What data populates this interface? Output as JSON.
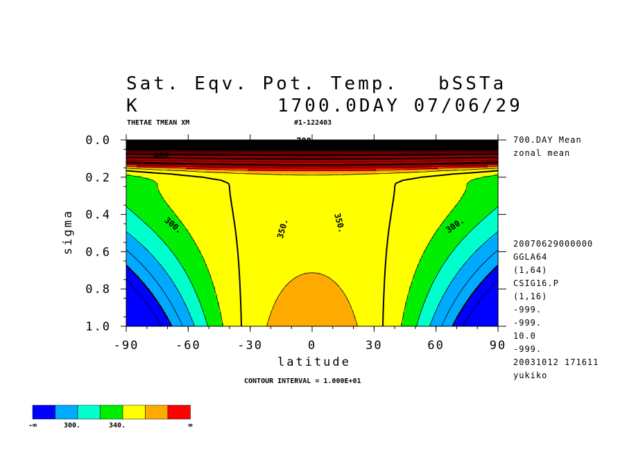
{
  "header": {
    "title_left": "Sat. Eqv. Pot. Temp.",
    "title_right": "bSSTa",
    "units": "K",
    "time": "1700.0DAY 07/06/29",
    "var_name": "THETAE TMEAN XM",
    "run_id": "#1-122403"
  },
  "side_info": {
    "mean": "700.DAY Mean",
    "zonal": "zonal mean",
    "lines": [
      "20070629000000",
      "GGLA64",
      "(1,64)",
      "CSIG16.P",
      "(1,16)",
      "-999.",
      "-999.",
      "10.0",
      "-999.",
      "20031012 171611",
      "yukiko"
    ]
  },
  "footer": {
    "contour_interval": "CONTOUR INTERVAL = 1.000E+01"
  },
  "colorbar": {
    "colors": [
      "#0000ff",
      "#00aaff",
      "#00ffcc",
      "#00ee00",
      "#ffff00",
      "#ffaa00",
      "#ff0000"
    ],
    "labels": [
      "-∞",
      "300.",
      "340.",
      "∞"
    ]
  },
  "chart_data": {
    "type": "heatmap",
    "title": "Sat. Eqv. Pot. Temp.",
    "xlabel": "latitude",
    "ylabel": "sigma",
    "xlim": [
      -90,
      90
    ],
    "ylim": [
      1.0,
      0.0
    ],
    "x_ticks": [
      "-90",
      "-60",
      "-30",
      "0",
      "30",
      "60",
      "90"
    ],
    "y_ticks": [
      "0.0",
      "0.2",
      "0.4",
      "0.6",
      "0.8",
      "1.0"
    ],
    "contour_labels": [
      "300.",
      "350.",
      "350.",
      "300.",
      "700",
      "400"
    ],
    "levels_K": [
      290,
      300,
      310,
      320,
      330,
      340,
      350,
      360,
      370,
      380,
      390,
      400,
      420,
      450,
      500,
      600,
      700
    ]
  }
}
